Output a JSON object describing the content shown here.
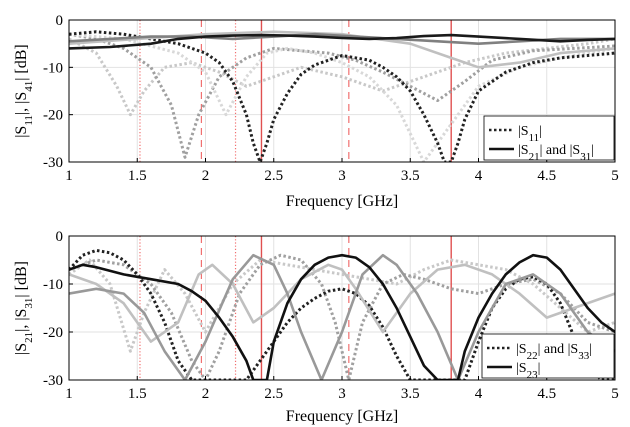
{
  "chart_data": [
    {
      "type": "line",
      "xlabel": "Frequency [GHz]",
      "ylabel_parts": [
        "|S",
        "11",
        "|, |S",
        "41",
        "| [dB]"
      ],
      "xlim": [
        1,
        5
      ],
      "ylim": [
        -30,
        0
      ],
      "xticks": [
        "1",
        "1.5",
        "2",
        "2.5",
        "3",
        "3.5",
        "4",
        "4.5",
        "5"
      ],
      "yticks": [
        "0",
        "-10",
        "-20",
        "-30"
      ],
      "grid": true,
      "vlines": [
        {
          "x": 1.52,
          "style": "dotted"
        },
        {
          "x": 2.22,
          "style": "dotted"
        },
        {
          "x": 1.97,
          "style": "dashed"
        },
        {
          "x": 3.05,
          "style": "dashed"
        },
        {
          "x": 2.41,
          "style": "solid"
        },
        {
          "x": 3.8,
          "style": "solid"
        }
      ],
      "legend": {
        "placement": "bottom-right",
        "entries": [
          {
            "style": "dotted",
            "parts": [
              {
                "t": "|S"
              },
              {
                "t": "11",
                "sub": true
              },
              {
                "t": "|"
              }
            ]
          },
          {
            "style": "solid",
            "parts": [
              {
                "t": "|S"
              },
              {
                "t": "21",
                "sub": true
              },
              {
                "t": "| and |S"
              },
              {
                "t": "31",
                "sub": true
              },
              {
                "t": "|"
              }
            ]
          }
        ]
      },
      "series": [
        {
          "color": "#c8c8c8",
          "style": "dotted",
          "x": [
            1.0,
            1.2,
            1.35,
            1.45,
            1.55,
            1.7,
            1.9,
            2.1,
            2.3,
            2.5,
            2.7,
            3.0,
            3.3,
            3.6,
            3.9,
            4.2,
            4.5,
            4.8,
            5.0
          ],
          "y": [
            -4,
            -7,
            -14,
            -20,
            -15,
            -10,
            -9,
            -11,
            -14,
            -12,
            -10,
            -12,
            -15,
            -12,
            -9,
            -7,
            -6,
            -5,
            -4
          ]
        },
        {
          "color": "#a0a0a0",
          "style": "dotted",
          "x": [
            1.0,
            1.2,
            1.4,
            1.6,
            1.75,
            1.85,
            1.95,
            2.1,
            2.3,
            2.5,
            2.7,
            2.9,
            3.1,
            3.3,
            3.5,
            3.7,
            3.9,
            4.1,
            4.4,
            4.7,
            5.0
          ],
          "y": [
            -3,
            -4,
            -6,
            -10,
            -18,
            -29,
            -20,
            -12,
            -8,
            -6,
            -6.5,
            -7,
            -8.5,
            -11,
            -14,
            -17,
            -13,
            -8.5,
            -6.5,
            -6,
            -5.5
          ]
        },
        {
          "color": "#d8d8d8",
          "style": "dotted",
          "x": [
            1.0,
            1.4,
            1.8,
            2.0,
            2.15,
            2.3,
            2.45,
            2.6,
            2.8,
            3.0,
            3.2,
            3.4,
            3.6,
            3.8,
            4.0,
            4.3,
            4.6,
            5.0
          ],
          "y": [
            -3,
            -4,
            -7,
            -11,
            -20,
            -12,
            -7,
            -6,
            -7,
            -9,
            -12,
            -18,
            -30,
            -22,
            -14,
            -10,
            -8,
            -6
          ]
        },
        {
          "color": "#222222",
          "style": "dotted",
          "x": [
            1.0,
            1.2,
            1.4,
            1.6,
            1.8,
            2.0,
            2.1,
            2.2,
            2.3,
            2.35,
            2.4,
            2.45,
            2.5,
            2.6,
            2.7,
            2.8,
            3.0,
            3.2,
            3.3,
            3.4,
            3.5,
            3.6,
            3.7,
            3.75,
            3.8,
            3.85,
            3.9,
            4.0,
            4.2,
            4.4,
            4.6,
            4.8,
            5.0
          ],
          "y": [
            -3,
            -2.5,
            -3,
            -4,
            -5,
            -7,
            -9,
            -13,
            -20,
            -26,
            -30,
            -26,
            -21,
            -15.5,
            -11.5,
            -9.5,
            -7.5,
            -8.5,
            -10,
            -12,
            -15,
            -20,
            -26,
            -30,
            -30,
            -26,
            -21,
            -15,
            -11,
            -9,
            -8,
            -7.5,
            -7
          ]
        },
        {
          "color": "#c0c0c0",
          "style": "solid",
          "x": [
            1.0,
            1.5,
            2.0,
            2.5,
            3.0,
            3.5,
            3.8,
            4.0,
            4.3,
            4.6,
            5.0
          ],
          "y": [
            -5,
            -4,
            -3,
            -2.5,
            -3,
            -5,
            -8,
            -10,
            -9,
            -7,
            -6
          ]
        },
        {
          "color": "#808080",
          "style": "solid",
          "x": [
            1.0,
            1.3,
            1.6,
            1.9,
            2.2,
            2.5,
            2.8,
            3.1,
            3.4,
            3.7,
            4.0,
            4.3,
            4.6,
            5.0
          ],
          "y": [
            -4.5,
            -4,
            -3.5,
            -3.5,
            -4,
            -3.5,
            -3,
            -3.5,
            -4,
            -4.5,
            -5,
            -4.5,
            -4,
            -4
          ]
        },
        {
          "color": "#1a1a1a",
          "style": "solid",
          "x": [
            1.0,
            1.3,
            1.6,
            1.8,
            2.0,
            2.2,
            2.4,
            2.6,
            2.8,
            3.0,
            3.2,
            3.4,
            3.6,
            3.8,
            4.0,
            4.3,
            4.6,
            4.8,
            5.0
          ],
          "y": [
            -6,
            -5.7,
            -5,
            -4,
            -3.5,
            -3.3,
            -3.2,
            -3.3,
            -3.5,
            -3.8,
            -4,
            -3.8,
            -3.4,
            -3.2,
            -3.5,
            -4,
            -4.5,
            -4.2,
            -4
          ]
        }
      ]
    },
    {
      "type": "line",
      "xlabel": "Frequency [GHz]",
      "ylabel_parts": [
        "|S",
        "21",
        "|, |S",
        "31",
        "| [dB]"
      ],
      "xlim": [
        1,
        5
      ],
      "ylim": [
        -30,
        0
      ],
      "xticks": [
        "1",
        "1.5",
        "2",
        "2.5",
        "3",
        "3.5",
        "4",
        "4.5",
        "5"
      ],
      "yticks": [
        "0",
        "-10",
        "-20",
        "-30"
      ],
      "grid": true,
      "vlines": [
        {
          "x": 1.52,
          "style": "dotted"
        },
        {
          "x": 2.22,
          "style": "dotted"
        },
        {
          "x": 1.97,
          "style": "dashed"
        },
        {
          "x": 3.05,
          "style": "dashed"
        },
        {
          "x": 2.41,
          "style": "solid"
        },
        {
          "x": 3.8,
          "style": "solid"
        }
      ],
      "legend": {
        "placement": "bottom-right",
        "entries": [
          {
            "style": "dotted",
            "parts": [
              {
                "t": "|S"
              },
              {
                "t": "22",
                "sub": true
              },
              {
                "t": "| and |S"
              },
              {
                "t": "33",
                "sub": true
              },
              {
                "t": "|"
              }
            ]
          },
          {
            "style": "solid",
            "parts": [
              {
                "t": "|S"
              },
              {
                "t": "23",
                "sub": true
              },
              {
                "t": "|"
              }
            ]
          }
        ]
      },
      "series": [
        {
          "color": "#c8c8c8",
          "style": "dotted",
          "x": [
            1.0,
            1.15,
            1.3,
            1.45,
            1.55,
            1.7,
            1.85,
            2.0,
            2.2,
            2.4,
            2.6,
            2.8,
            3.0,
            3.2,
            3.4,
            3.6,
            3.8,
            4.0,
            4.2,
            4.4,
            4.6,
            4.8,
            5.0
          ],
          "y": [
            -8,
            -5,
            -10,
            -24,
            -16,
            -7,
            -12,
            -20,
            -10,
            -5,
            -6,
            -7,
            -8,
            -9,
            -10,
            -7,
            -5,
            -6,
            -7,
            -10,
            -15,
            -20,
            -18
          ]
        },
        {
          "color": "#a0a0a0",
          "style": "dotted",
          "x": [
            1.0,
            1.2,
            1.4,
            1.6,
            1.75,
            1.9,
            2.0,
            2.1,
            2.25,
            2.4,
            2.55,
            2.7,
            2.85,
            2.95,
            3.05,
            3.15,
            3.3,
            3.45,
            3.6,
            3.8,
            4.0,
            4.2,
            4.4,
            4.6,
            4.8,
            5.0
          ],
          "y": [
            -7,
            -5,
            -6,
            -10,
            -16,
            -26,
            -30,
            -24,
            -12,
            -6,
            -4,
            -5,
            -10,
            -18,
            -30,
            -18,
            -10,
            -8,
            -9,
            -11,
            -12,
            -10,
            -9,
            -12,
            -18,
            -20
          ]
        },
        {
          "color": "#222222",
          "style": "dotted",
          "x": [
            1.0,
            1.1,
            1.2,
            1.3,
            1.4,
            1.5,
            1.6,
            1.7,
            1.8,
            1.9,
            2.0,
            2.15,
            2.3,
            2.4,
            2.5,
            2.6,
            2.7,
            2.8,
            2.9,
            3.0,
            3.1,
            3.2,
            3.3,
            3.4,
            3.5,
            3.6,
            3.7,
            3.8,
            3.9,
            4.0,
            4.1,
            4.2,
            4.3,
            4.4,
            4.5,
            4.6,
            4.7,
            4.8,
            4.9,
            5.0
          ],
          "y": [
            -7,
            -4,
            -3,
            -3.5,
            -5,
            -8,
            -12,
            -18,
            -26,
            -30,
            -30,
            -30,
            -30,
            -26,
            -22,
            -18,
            -15,
            -13,
            -11.5,
            -11,
            -12,
            -14.5,
            -19,
            -25,
            -30,
            -30,
            -30,
            -30,
            -30,
            -22,
            -15,
            -11,
            -9,
            -8.5,
            -10,
            -14,
            -21,
            -27,
            -30,
            -30
          ]
        },
        {
          "color": "#c0c0c0",
          "style": "solid",
          "x": [
            1.0,
            1.2,
            1.4,
            1.6,
            1.8,
            1.95,
            2.05,
            2.2,
            2.35,
            2.5,
            2.7,
            2.9,
            3.0,
            3.1,
            3.3,
            3.5,
            3.7,
            3.9,
            4.1,
            4.3,
            4.5,
            4.7,
            4.9,
            5.0
          ],
          "y": [
            -8,
            -10,
            -14,
            -22,
            -18,
            -8,
            -6,
            -10,
            -18,
            -15,
            -9,
            -6,
            -7,
            -11,
            -20,
            -12,
            -7,
            -6,
            -8,
            -12,
            -17,
            -15,
            -13,
            -12
          ]
        },
        {
          "color": "#999999",
          "style": "solid",
          "x": [
            1.0,
            1.2,
            1.4,
            1.55,
            1.7,
            1.85,
            2.0,
            2.2,
            2.35,
            2.5,
            2.6,
            2.7,
            2.85,
            3.0,
            3.15,
            3.3,
            3.4,
            3.55,
            3.7,
            3.85,
            4.0,
            4.2,
            4.4,
            4.6,
            4.8,
            5.0
          ],
          "y": [
            -12,
            -11,
            -12,
            -16,
            -24,
            -30,
            -22,
            -9,
            -4,
            -6,
            -12,
            -20,
            -30,
            -20,
            -8,
            -4,
            -6,
            -12,
            -20,
            -30,
            -20,
            -10,
            -8,
            -12,
            -20,
            -24
          ]
        },
        {
          "color": "#111111",
          "style": "solid",
          "x": [
            1.0,
            1.1,
            1.2,
            1.4,
            1.6,
            1.8,
            1.9,
            2.0,
            2.1,
            2.2,
            2.3,
            2.35,
            2.4,
            2.45,
            2.5,
            2.6,
            2.7,
            2.8,
            2.9,
            3.0,
            3.1,
            3.2,
            3.3,
            3.4,
            3.5,
            3.6,
            3.7,
            3.75,
            3.8,
            3.85,
            3.9,
            4.0,
            4.1,
            4.2,
            4.3,
            4.4,
            4.5,
            4.6,
            4.7,
            4.8,
            4.9,
            5.0
          ],
          "y": [
            -7,
            -6,
            -6.5,
            -8,
            -9,
            -10,
            -11.5,
            -13.5,
            -17,
            -21,
            -26,
            -30,
            -30,
            -30,
            -22,
            -14,
            -9,
            -6,
            -4.5,
            -4,
            -4.5,
            -6.5,
            -10,
            -15,
            -21,
            -27,
            -30,
            -30,
            -30,
            -30,
            -24,
            -17,
            -12,
            -8,
            -5.5,
            -4,
            -4.5,
            -7,
            -11,
            -15,
            -18,
            -20
          ]
        }
      ]
    }
  ]
}
